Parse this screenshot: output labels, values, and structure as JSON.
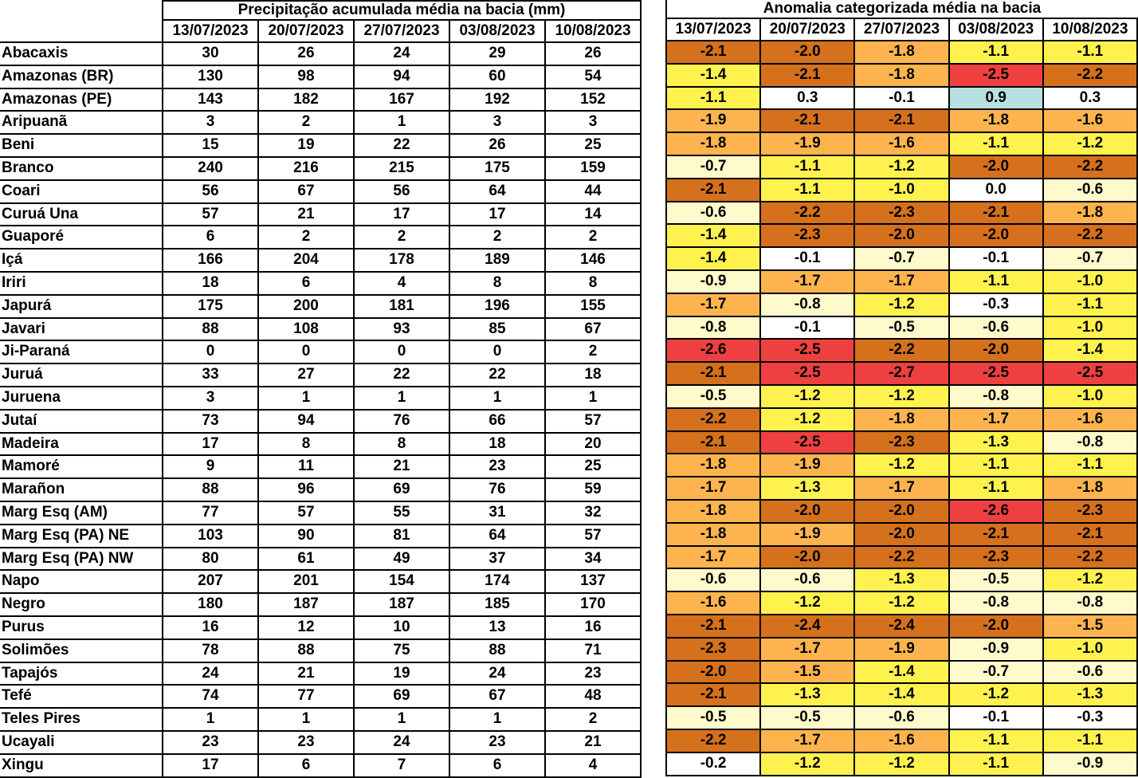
{
  "precipitation_table": {
    "title": "Precipitação acumulada média na bacia (mm)",
    "dates": [
      "13/07/2023",
      "20/07/2023",
      "27/07/2023",
      "03/08/2023",
      "10/08/2023"
    ]
  },
  "anomaly_table": {
    "title": "Anomalia categorizada média na bacia",
    "dates": [
      "13/07/2023",
      "20/07/2023",
      "27/07/2023",
      "03/08/2023",
      "10/08/2023"
    ]
  },
  "colors": {
    "red": "#EE4040",
    "dark_orange": "#D5701D",
    "light_orange": "#FDB44F",
    "yellow": "#FFF24F",
    "cream": "#FFFACC",
    "white": "#FFFFFF",
    "light_blue": "#B8E0E0"
  },
  "rows": [
    {
      "basin": "Abacaxis",
      "precip": [
        "30",
        "26",
        "24",
        "29",
        "26"
      ],
      "anomaly": [
        "-2.1",
        "-2.0",
        "-1.8",
        "-1.1",
        "-1.1"
      ]
    },
    {
      "basin": "Amazonas (BR)",
      "precip": [
        "130",
        "98",
        "94",
        "60",
        "54"
      ],
      "anomaly": [
        "-1.4",
        "-2.1",
        "-1.8",
        "-2.5",
        "-2.2"
      ]
    },
    {
      "basin": "Amazonas (PE)",
      "precip": [
        "143",
        "182",
        "167",
        "192",
        "152"
      ],
      "anomaly": [
        "-1.1",
        "0.3",
        "-0.1",
        "0.9",
        "0.3"
      ]
    },
    {
      "basin": "Aripuanã",
      "precip": [
        "3",
        "2",
        "1",
        "3",
        "3"
      ],
      "anomaly": [
        "-1.9",
        "-2.1",
        "-2.1",
        "-1.8",
        "-1.6"
      ]
    },
    {
      "basin": "Beni",
      "precip": [
        "15",
        "19",
        "22",
        "26",
        "25"
      ],
      "anomaly": [
        "-1.8",
        "-1.9",
        "-1.6",
        "-1.1",
        "-1.2"
      ]
    },
    {
      "basin": "Branco",
      "precip": [
        "240",
        "216",
        "215",
        "175",
        "159"
      ],
      "anomaly": [
        "-0.7",
        "-1.1",
        "-1.2",
        "-2.0",
        "-2.2"
      ]
    },
    {
      "basin": "Coari",
      "precip": [
        "56",
        "67",
        "56",
        "64",
        "44"
      ],
      "anomaly": [
        "-2.1",
        "-1.1",
        "-1.0",
        "0.0",
        "-0.6"
      ]
    },
    {
      "basin": "Curuá Una",
      "precip": [
        "57",
        "21",
        "17",
        "17",
        "14"
      ],
      "anomaly": [
        "-0.6",
        "-2.2",
        "-2.3",
        "-2.1",
        "-1.8"
      ]
    },
    {
      "basin": "Guaporé",
      "precip": [
        "6",
        "2",
        "2",
        "2",
        "2"
      ],
      "anomaly": [
        "-1.4",
        "-2.3",
        "-2.0",
        "-2.0",
        "-2.2"
      ]
    },
    {
      "basin": "Içá",
      "precip": [
        "166",
        "204",
        "178",
        "189",
        "146"
      ],
      "anomaly": [
        "-1.4",
        "-0.1",
        "-0.7",
        "-0.1",
        "-0.7"
      ]
    },
    {
      "basin": "Iriri",
      "precip": [
        "18",
        "6",
        "4",
        "8",
        "8"
      ],
      "anomaly": [
        "-0.9",
        "-1.7",
        "-1.7",
        "-1.1",
        "-1.0"
      ]
    },
    {
      "basin": "Japurá",
      "precip": [
        "175",
        "200",
        "181",
        "196",
        "155"
      ],
      "anomaly": [
        "-1.7",
        "-0.8",
        "-1.2",
        "-0.3",
        "-1.1"
      ]
    },
    {
      "basin": "Javari",
      "precip": [
        "88",
        "108",
        "93",
        "85",
        "67"
      ],
      "anomaly": [
        "-0.8",
        "-0.1",
        "-0.5",
        "-0.6",
        "-1.0"
      ]
    },
    {
      "basin": "Ji-Paraná",
      "precip": [
        "0",
        "0",
        "0",
        "0",
        "2"
      ],
      "anomaly": [
        "-2.6",
        "-2.5",
        "-2.2",
        "-2.0",
        "-1.4"
      ]
    },
    {
      "basin": "Juruá",
      "precip": [
        "33",
        "27",
        "22",
        "22",
        "18"
      ],
      "anomaly": [
        "-2.1",
        "-2.5",
        "-2.7",
        "-2.5",
        "-2.5"
      ]
    },
    {
      "basin": "Juruena",
      "precip": [
        "3",
        "1",
        "1",
        "1",
        "1"
      ],
      "anomaly": [
        "-0.5",
        "-1.2",
        "-1.2",
        "-0.8",
        "-1.0"
      ]
    },
    {
      "basin": "Jutaí",
      "precip": [
        "73",
        "94",
        "76",
        "66",
        "57"
      ],
      "anomaly": [
        "-2.2",
        "-1.2",
        "-1.8",
        "-1.7",
        "-1.6"
      ]
    },
    {
      "basin": "Madeira",
      "precip": [
        "17",
        "8",
        "8",
        "18",
        "20"
      ],
      "anomaly": [
        "-2.1",
        "-2.5",
        "-2.3",
        "-1.3",
        "-0.8"
      ]
    },
    {
      "basin": "Mamoré",
      "precip": [
        "9",
        "11",
        "21",
        "23",
        "25"
      ],
      "anomaly": [
        "-1.8",
        "-1.9",
        "-1.2",
        "-1.1",
        "-1.1"
      ]
    },
    {
      "basin": "Marañon",
      "precip": [
        "88",
        "96",
        "69",
        "76",
        "59"
      ],
      "anomaly": [
        "-1.7",
        "-1.3",
        "-1.7",
        "-1.1",
        "-1.8"
      ]
    },
    {
      "basin": "Marg Esq (AM)",
      "precip": [
        "77",
        "57",
        "55",
        "31",
        "32"
      ],
      "anomaly": [
        "-1.8",
        "-2.0",
        "-2.0",
        "-2.6",
        "-2.3"
      ]
    },
    {
      "basin": "Marg Esq (PA) NE",
      "precip": [
        "103",
        "90",
        "81",
        "64",
        "57"
      ],
      "anomaly": [
        "-1.8",
        "-1.9",
        "-2.0",
        "-2.1",
        "-2.1"
      ]
    },
    {
      "basin": "Marg Esq (PA) NW",
      "precip": [
        "80",
        "61",
        "49",
        "37",
        "34"
      ],
      "anomaly": [
        "-1.7",
        "-2.0",
        "-2.2",
        "-2.3",
        "-2.2"
      ]
    },
    {
      "basin": "Napo",
      "precip": [
        "207",
        "201",
        "154",
        "174",
        "137"
      ],
      "anomaly": [
        "-0.6",
        "-0.6",
        "-1.3",
        "-0.5",
        "-1.2"
      ]
    },
    {
      "basin": "Negro",
      "precip": [
        "180",
        "187",
        "187",
        "185",
        "170"
      ],
      "anomaly": [
        "-1.6",
        "-1.2",
        "-1.2",
        "-0.8",
        "-0.8"
      ]
    },
    {
      "basin": "Purus",
      "precip": [
        "16",
        "12",
        "10",
        "13",
        "16"
      ],
      "anomaly": [
        "-2.1",
        "-2.4",
        "-2.4",
        "-2.0",
        "-1.5"
      ]
    },
    {
      "basin": "Solimões",
      "precip": [
        "78",
        "88",
        "75",
        "88",
        "71"
      ],
      "anomaly": [
        "-2.3",
        "-1.7",
        "-1.9",
        "-0.9",
        "-1.0"
      ]
    },
    {
      "basin": "Tapajós",
      "precip": [
        "24",
        "21",
        "19",
        "24",
        "23"
      ],
      "anomaly": [
        "-2.0",
        "-1.5",
        "-1.4",
        "-0.7",
        "-0.6"
      ]
    },
    {
      "basin": "Tefé",
      "precip": [
        "74",
        "77",
        "69",
        "67",
        "48"
      ],
      "anomaly": [
        "-2.1",
        "-1.3",
        "-1.4",
        "-1.2",
        "-1.3"
      ]
    },
    {
      "basin": "Teles Pires",
      "precip": [
        "1",
        "1",
        "1",
        "1",
        "2"
      ],
      "anomaly": [
        "-0.5",
        "-0.5",
        "-0.6",
        "-0.1",
        "-0.3"
      ]
    },
    {
      "basin": "Ucayali",
      "precip": [
        "23",
        "23",
        "24",
        "23",
        "21"
      ],
      "anomaly": [
        "-2.2",
        "-1.7",
        "-1.6",
        "-1.1",
        "-1.1"
      ]
    },
    {
      "basin": "Xingu",
      "precip": [
        "17",
        "6",
        "7",
        "6",
        "4"
      ],
      "anomaly": [
        "-0.2",
        "-1.2",
        "-1.2",
        "-1.1",
        "-0.9"
      ]
    }
  ]
}
